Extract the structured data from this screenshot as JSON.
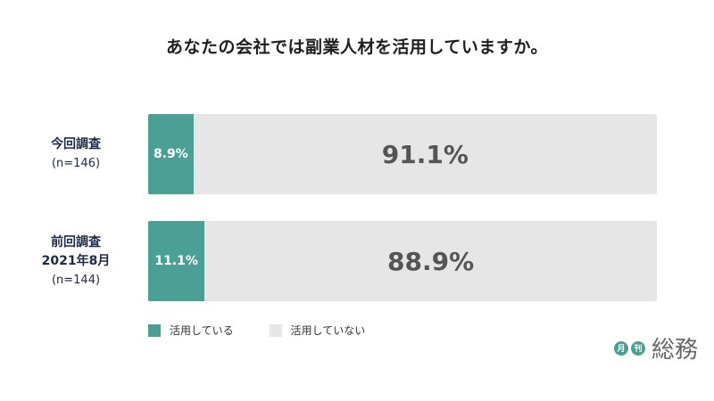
{
  "chart_data": {
    "type": "bar",
    "stacked": true,
    "orientation": "horizontal",
    "title": "あなたの会社では副業人材を活用していますか。",
    "categories": [
      {
        "label": "今回調査",
        "sub": "(n=146)"
      },
      {
        "label": "前回調査\n2021年8月",
        "sub": "(n=144)"
      }
    ],
    "series": [
      {
        "name": "活用している",
        "color": "#4aa095",
        "values": [
          8.9,
          11.1
        ],
        "labels": [
          "8.9%",
          "11.1%"
        ]
      },
      {
        "name": "活用していない",
        "color": "#e6e6e6",
        "values": [
          91.1,
          88.9
        ],
        "labels": [
          "91.1%",
          "88.9%"
        ]
      }
    ]
  },
  "logo": {
    "badge1": "月",
    "badge2": "刊",
    "word": "総務"
  }
}
